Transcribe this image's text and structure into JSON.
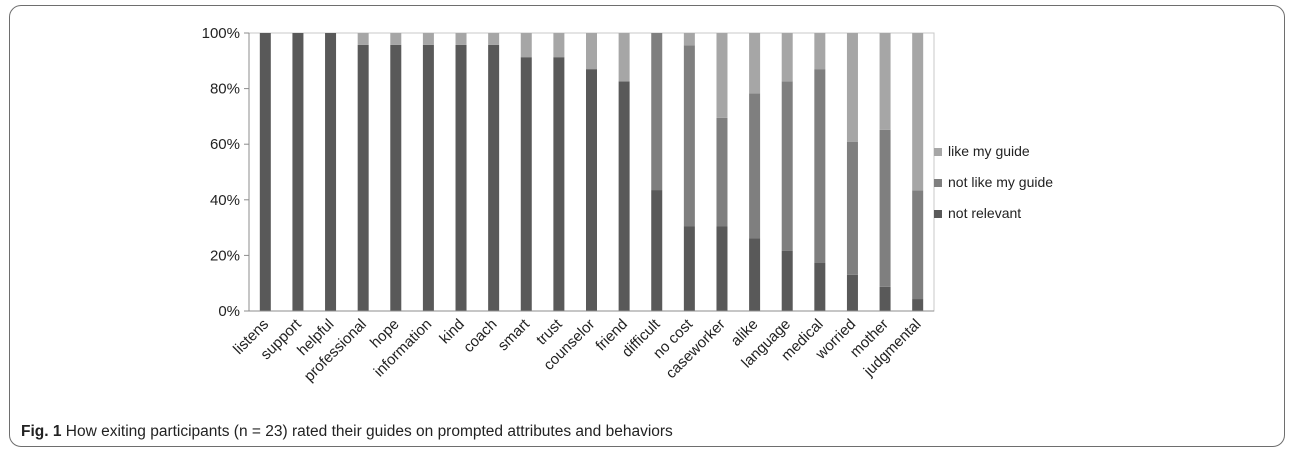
{
  "chart_data": {
    "type": "bar",
    "stacked": true,
    "percent": true,
    "categories": [
      "listens",
      "support",
      "helpful",
      "professional",
      "hope",
      "information",
      "kind",
      "coach",
      "smart",
      "trust",
      "counselor",
      "friend",
      "difficult",
      "no cost",
      "caseworker",
      "alike",
      "language",
      "medical",
      "worried",
      "mother",
      "judgmental"
    ],
    "series": [
      {
        "name": "not relevant",
        "color": "#595959",
        "values": [
          100,
          100,
          100,
          95.7,
          95.7,
          95.7,
          95.7,
          95.7,
          91.3,
          91.3,
          87.0,
          82.6,
          43.5,
          30.4,
          30.4,
          26.1,
          21.7,
          17.4,
          13.0,
          8.7,
          4.3
        ]
      },
      {
        "name": "not like my guide",
        "color": "#7f7f7f",
        "values": [
          0,
          0,
          0,
          0,
          0,
          0,
          0,
          0,
          0,
          0,
          0,
          0,
          56.5,
          65.2,
          39.1,
          52.2,
          60.9,
          69.6,
          47.8,
          56.5,
          39.1
        ]
      },
      {
        "name": "like my guide",
        "color": "#a6a6a6",
        "values": [
          0,
          0,
          0,
          4.3,
          4.3,
          4.3,
          4.3,
          4.3,
          8.7,
          8.7,
          13.0,
          17.4,
          0,
          4.4,
          30.5,
          21.7,
          17.4,
          13.0,
          39.2,
          34.8,
          56.6
        ]
      }
    ],
    "yticks": [
      "0%",
      "20%",
      "40%",
      "60%",
      "80%",
      "100%"
    ],
    "ylim": [
      0,
      100
    ],
    "grid": false,
    "legend_position": "right"
  },
  "legend": [
    {
      "label": "like my guide",
      "color": "#a6a6a6"
    },
    {
      "label": "not like my guide",
      "color": "#7f7f7f"
    },
    {
      "label": "not relevant",
      "color": "#595959"
    }
  ],
  "caption": {
    "label": "Fig. 1",
    "text": " How exiting participants (n = 23) rated their guides on prompted attributes and behaviors"
  }
}
